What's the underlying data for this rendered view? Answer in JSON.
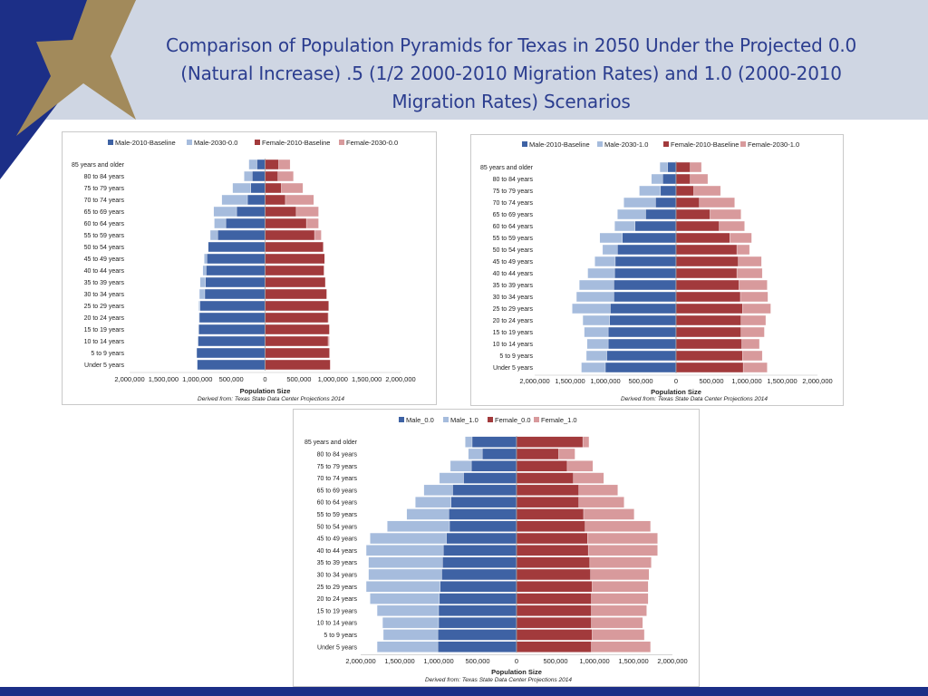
{
  "title": "Comparison of Population Pyramids for Texas in 2050 Under the Projected 0.0 (Natural Increase) .5 (1/2 2000-2010 Migration Rates) and 1.0 (2000-2010 Migration Rates) Scenarios",
  "colors": {
    "header_bg": "#cfd6e3",
    "title_text": "#2b3d8f",
    "corner_blue": "#1c2f87",
    "star_gold": "#a28a5b",
    "male_base": "#3e62a4",
    "male_scenario": "#a6bcdd",
    "female_base": "#a23a3c",
    "female_scenario": "#d89a9c"
  },
  "chart_data": [
    {
      "type": "bar",
      "orientation": "horizontal-pyramid",
      "categories": [
        "85 years and older",
        "80 to 84 years",
        "75 to 79 years",
        "70 to 74 years",
        "65 to 69 years",
        "60 to 64 years",
        "55 to 59 years",
        "50 to 54 years",
        "45 to 49 years",
        "40 to 44 years",
        "35 to 39 years",
        "30 to 34 years",
        "25 to 29 years",
        "20 to 24 years",
        "15 to 19 years",
        "10 to 14 years",
        "5 to 9 years",
        "Under 5 years"
      ],
      "series": [
        {
          "name": "Male-2010-Baseline",
          "side": "left",
          "values": [
            120000,
            190000,
            210000,
            260000,
            420000,
            580000,
            700000,
            840000,
            860000,
            870000,
            880000,
            890000,
            960000,
            970000,
            980000,
            990000,
            1010000,
            1000000
          ]
        },
        {
          "name": "Male-2030-0.0",
          "side": "left",
          "values": [
            240000,
            310000,
            480000,
            640000,
            760000,
            750000,
            810000,
            840000,
            900000,
            920000,
            960000,
            970000,
            980000,
            980000,
            980000,
            990000,
            990000,
            1010000
          ]
        },
        {
          "name": "Female-2010-Baseline",
          "side": "right",
          "values": [
            200000,
            190000,
            240000,
            300000,
            460000,
            610000,
            730000,
            860000,
            880000,
            870000,
            890000,
            910000,
            940000,
            930000,
            950000,
            930000,
            950000,
            960000
          ]
        },
        {
          "name": "Female-2030-0.0",
          "side": "right",
          "values": [
            370000,
            420000,
            560000,
            720000,
            790000,
            790000,
            830000,
            860000,
            880000,
            870000,
            890000,
            900000,
            930000,
            940000,
            940000,
            950000,
            960000,
            970000
          ]
        }
      ],
      "x_ticks": [
        "2,000,000",
        "1,500,000",
        "1,000,000",
        "500,000",
        "0",
        "500,000",
        "1,000,000",
        "1,500,000",
        "2,000,000"
      ],
      "xlim": [
        -2000000,
        2000000
      ],
      "xlabel": "Population Size",
      "source": "Derived from: Texas State Data Center Projections 2014",
      "legend_position": "top"
    },
    {
      "type": "bar",
      "orientation": "horizontal-pyramid",
      "categories": [
        "85 years and older",
        "80 to 84 years",
        "75 to 79 years",
        "70 to 74 years",
        "65 to 69 years",
        "60 to 64 years",
        "55 to 59 years",
        "50 to 54 years",
        "45 to 49 years",
        "40 to 44 years",
        "35 to 39 years",
        "30 to 34 years",
        "25 to 29 years",
        "20 to 24 years",
        "15 to 19 years",
        "10 to 14 years",
        "5 to 9 years",
        "Under 5 years"
      ],
      "series": [
        {
          "name": "Male-2010-Baseline",
          "side": "left",
          "values": [
            120000,
            190000,
            220000,
            290000,
            430000,
            580000,
            760000,
            830000,
            860000,
            870000,
            880000,
            880000,
            930000,
            940000,
            960000,
            960000,
            980000,
            1000000
          ]
        },
        {
          "name": "Male-2030-1.0",
          "side": "left",
          "values": [
            230000,
            350000,
            520000,
            740000,
            830000,
            870000,
            1080000,
            1040000,
            1150000,
            1250000,
            1370000,
            1410000,
            1470000,
            1320000,
            1300000,
            1260000,
            1270000,
            1340000
          ]
        },
        {
          "name": "Female-2010-Baseline",
          "side": "right",
          "values": [
            200000,
            200000,
            250000,
            330000,
            480000,
            610000,
            760000,
            860000,
            880000,
            860000,
            890000,
            910000,
            940000,
            920000,
            920000,
            930000,
            940000,
            950000
          ]
        },
        {
          "name": "Female-2030-1.0",
          "side": "right",
          "values": [
            360000,
            450000,
            630000,
            830000,
            920000,
            970000,
            1070000,
            1040000,
            1210000,
            1220000,
            1290000,
            1300000,
            1340000,
            1270000,
            1250000,
            1180000,
            1220000,
            1290000
          ]
        }
      ],
      "x_ticks": [
        "2,000,000",
        "1,500,000",
        "1,000,000",
        "500,000",
        "0",
        "500,000",
        "1,000,000",
        "1,500,000",
        "2,000,000"
      ],
      "xlim": [
        -2000000,
        2000000
      ],
      "xlabel": "Population Size",
      "source": "Derived from: Texas State Data Center Projections 2014",
      "legend_position": "top"
    },
    {
      "type": "bar",
      "orientation": "horizontal-pyramid",
      "categories": [
        "85 years and older",
        "80 to 84 years",
        "75 to 79 years",
        "70 to 74 years",
        "65 to 69 years",
        "60 to 64 years",
        "55 to 59 years",
        "50 to 54 years",
        "45 to 49 years",
        "40 to 44 years",
        "35 to 39 years",
        "30 to 34 years",
        "25 to 29 years",
        "20 to 24 years",
        "15 to 19 years",
        "10 to 14 years",
        "5 to 9 years",
        "Under 5 years"
      ],
      "series": [
        {
          "name": "Male_0.0",
          "side": "left",
          "values": [
            570000,
            440000,
            580000,
            680000,
            820000,
            840000,
            870000,
            860000,
            900000,
            940000,
            950000,
            960000,
            980000,
            990000,
            1000000,
            1000000,
            1010000,
            1010000
          ]
        },
        {
          "name": "Male_1.0",
          "side": "left",
          "values": [
            660000,
            620000,
            850000,
            990000,
            1190000,
            1300000,
            1410000,
            1660000,
            1880000,
            1930000,
            1900000,
            1900000,
            1930000,
            1880000,
            1790000,
            1720000,
            1710000,
            1790000
          ]
        },
        {
          "name": "Female_0.0",
          "side": "right",
          "values": [
            850000,
            540000,
            650000,
            730000,
            800000,
            800000,
            860000,
            880000,
            910000,
            920000,
            940000,
            950000,
            970000,
            960000,
            960000,
            960000,
            970000,
            960000
          ]
        },
        {
          "name": "Female_1.0",
          "side": "right",
          "values": [
            930000,
            750000,
            980000,
            1120000,
            1300000,
            1380000,
            1510000,
            1720000,
            1810000,
            1810000,
            1730000,
            1700000,
            1690000,
            1690000,
            1670000,
            1620000,
            1640000,
            1720000
          ]
        }
      ],
      "x_ticks": [
        "2,000,000",
        "1,500,000",
        "1,000,000",
        "500,000",
        "0",
        "500,000",
        "1,000,000",
        "1,500,000",
        "2,000,000"
      ],
      "xlim": [
        -2000000,
        2000000
      ],
      "xlabel": "Population Size",
      "source": "Derived from: Texas State Data Center Projections 2014",
      "legend_position": "top"
    }
  ]
}
